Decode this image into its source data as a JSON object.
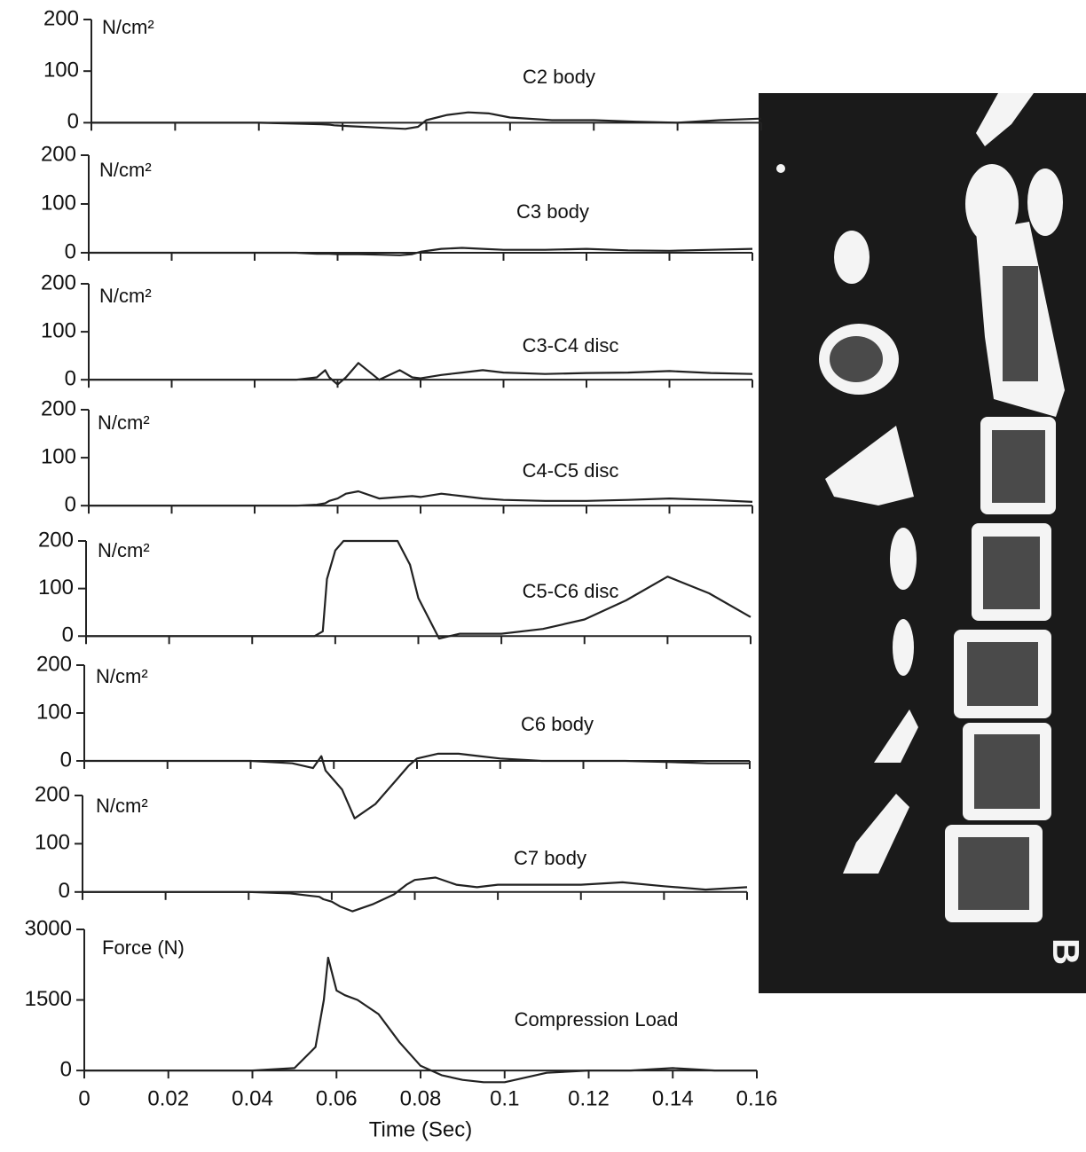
{
  "chart_data": [
    {
      "type": "line",
      "annotation": "C2 body",
      "unit_label": "N/cm²",
      "x": [
        0,
        0.01,
        0.02,
        0.03,
        0.04,
        0.05,
        0.055,
        0.057,
        0.058,
        0.06,
        0.062,
        0.065,
        0.07,
        0.075,
        0.078,
        0.08,
        0.085,
        0.09,
        0.095,
        0.1,
        0.11,
        0.12,
        0.13,
        0.14,
        0.15,
        0.16
      ],
      "values": [
        0,
        0,
        0,
        0,
        0,
        -2,
        -3,
        -4,
        -5,
        -6,
        -7,
        -8,
        -10,
        -12,
        -8,
        5,
        15,
        20,
        18,
        10,
        5,
        5,
        2,
        0,
        5,
        8
      ],
      "color": "#222222",
      "ylim": [
        -20,
        200
      ],
      "yticks": [
        0,
        100,
        200
      ]
    },
    {
      "type": "line",
      "annotation": "C3 body",
      "unit_label": "N/cm²",
      "x": [
        0,
        0.01,
        0.02,
        0.03,
        0.04,
        0.05,
        0.055,
        0.057,
        0.058,
        0.06,
        0.062,
        0.065,
        0.07,
        0.075,
        0.078,
        0.08,
        0.085,
        0.09,
        0.095,
        0.1,
        0.11,
        0.12,
        0.13,
        0.14,
        0.15,
        0.16
      ],
      "values": [
        0,
        0,
        0,
        0,
        0,
        0,
        -2,
        -2,
        -2,
        -3,
        -3,
        -3,
        -4,
        -5,
        -3,
        2,
        8,
        10,
        8,
        6,
        6,
        8,
        5,
        4,
        6,
        8
      ],
      "color": "#222222",
      "ylim": [
        -20,
        200
      ],
      "yticks": [
        0,
        100,
        200
      ]
    },
    {
      "type": "line",
      "annotation": "C3-C4 disc",
      "unit_label": "N/cm²",
      "x": [
        0,
        0.01,
        0.02,
        0.03,
        0.04,
        0.05,
        0.055,
        0.057,
        0.058,
        0.06,
        0.062,
        0.065,
        0.07,
        0.075,
        0.078,
        0.08,
        0.085,
        0.09,
        0.095,
        0.1,
        0.11,
        0.12,
        0.13,
        0.14,
        0.15,
        0.16
      ],
      "values": [
        0,
        0,
        0,
        0,
        0,
        0,
        5,
        20,
        5,
        -10,
        5,
        35,
        0,
        20,
        5,
        3,
        10,
        15,
        20,
        15,
        12,
        14,
        15,
        18,
        14,
        12
      ],
      "color": "#222222",
      "ylim": [
        -20,
        200
      ],
      "yticks": [
        0,
        100,
        200
      ]
    },
    {
      "type": "line",
      "annotation": "C4-C5 disc",
      "unit_label": "N/cm²",
      "x": [
        0,
        0.01,
        0.02,
        0.03,
        0.04,
        0.05,
        0.055,
        0.057,
        0.058,
        0.06,
        0.062,
        0.065,
        0.07,
        0.075,
        0.078,
        0.08,
        0.085,
        0.09,
        0.095,
        0.1,
        0.11,
        0.12,
        0.13,
        0.14,
        0.15,
        0.16
      ],
      "values": [
        0,
        0,
        0,
        0,
        0,
        0,
        2,
        5,
        10,
        15,
        25,
        30,
        15,
        18,
        20,
        18,
        25,
        20,
        15,
        12,
        10,
        10,
        12,
        15,
        12,
        8
      ],
      "color": "#222222",
      "ylim": [
        -20,
        200
      ],
      "yticks": [
        0,
        100,
        200
      ]
    },
    {
      "type": "line",
      "annotation": "C5-C6 disc",
      "unit_label": "N/cm²",
      "x": [
        0,
        0.01,
        0.02,
        0.03,
        0.04,
        0.05,
        0.055,
        0.057,
        0.058,
        0.06,
        0.062,
        0.065,
        0.07,
        0.075,
        0.078,
        0.08,
        0.085,
        0.09,
        0.095,
        0.1,
        0.11,
        0.12,
        0.13,
        0.14,
        0.15,
        0.16
      ],
      "values": [
        0,
        0,
        0,
        0,
        0,
        0,
        0,
        10,
        120,
        180,
        200,
        200,
        200,
        200,
        150,
        80,
        -5,
        5,
        5,
        5,
        15,
        35,
        75,
        125,
        90,
        40
      ],
      "color": "#222222",
      "ylim": [
        -20,
        200
      ],
      "yticks": [
        0,
        100,
        200
      ]
    },
    {
      "type": "line",
      "annotation": "C6 body",
      "unit_label": "N/cm²",
      "x": [
        0,
        0.01,
        0.02,
        0.03,
        0.04,
        0.05,
        0.055,
        0.057,
        0.058,
        0.06,
        0.062,
        0.065,
        0.07,
        0.075,
        0.078,
        0.08,
        0.085,
        0.09,
        0.095,
        0.1,
        0.11,
        0.12,
        0.13,
        0.14,
        0.15,
        0.16
      ],
      "values": [
        0,
        0,
        0,
        0,
        0,
        -5,
        -15,
        10,
        -20,
        -40,
        -60,
        -120,
        -90,
        -40,
        -10,
        5,
        15,
        15,
        10,
        5,
        0,
        0,
        0,
        -2,
        -5,
        -5
      ],
      "color": "#222222",
      "ylim": [
        -150,
        200
      ],
      "yticks": [
        0,
        100,
        200
      ]
    },
    {
      "type": "line",
      "annotation": "C7 body",
      "unit_label": "N/cm²",
      "x": [
        0,
        0.01,
        0.02,
        0.03,
        0.04,
        0.05,
        0.055,
        0.057,
        0.058,
        0.06,
        0.062,
        0.065,
        0.07,
        0.075,
        0.078,
        0.08,
        0.085,
        0.09,
        0.095,
        0.1,
        0.11,
        0.12,
        0.13,
        0.14,
        0.15,
        0.16
      ],
      "values": [
        0,
        0,
        0,
        0,
        0,
        -3,
        -8,
        -10,
        -15,
        -20,
        -30,
        -40,
        -25,
        -5,
        15,
        25,
        30,
        15,
        10,
        15,
        15,
        15,
        20,
        12,
        5,
        10
      ],
      "color": "#222222",
      "ylim": [
        -50,
        200
      ],
      "yticks": [
        0,
        100,
        200
      ]
    },
    {
      "type": "line",
      "annotation": "Compression Load",
      "unit_label": "Force (N)",
      "x": [
        0,
        0.01,
        0.02,
        0.03,
        0.04,
        0.05,
        0.055,
        0.057,
        0.058,
        0.06,
        0.062,
        0.065,
        0.07,
        0.075,
        0.078,
        0.08,
        0.085,
        0.09,
        0.095,
        0.1,
        0.11,
        0.12,
        0.13,
        0.14,
        0.15,
        0.16
      ],
      "values": [
        0,
        0,
        0,
        0,
        0,
        50,
        500,
        1500,
        2400,
        1700,
        1600,
        1500,
        1200,
        600,
        300,
        100,
        -100,
        -200,
        -250,
        -250,
        -50,
        0,
        0,
        50,
        0,
        0
      ],
      "color": "#222222",
      "ylim": [
        -300,
        3000
      ],
      "yticks": [
        0,
        1500,
        3000
      ],
      "xlim": [
        0,
        0.16
      ],
      "xticks": [
        0,
        0.02,
        0.04,
        0.06,
        0.08,
        0.1,
        0.12,
        0.14,
        0.16
      ],
      "xlabel": "Time (Sec)"
    }
  ],
  "image_label": "B"
}
